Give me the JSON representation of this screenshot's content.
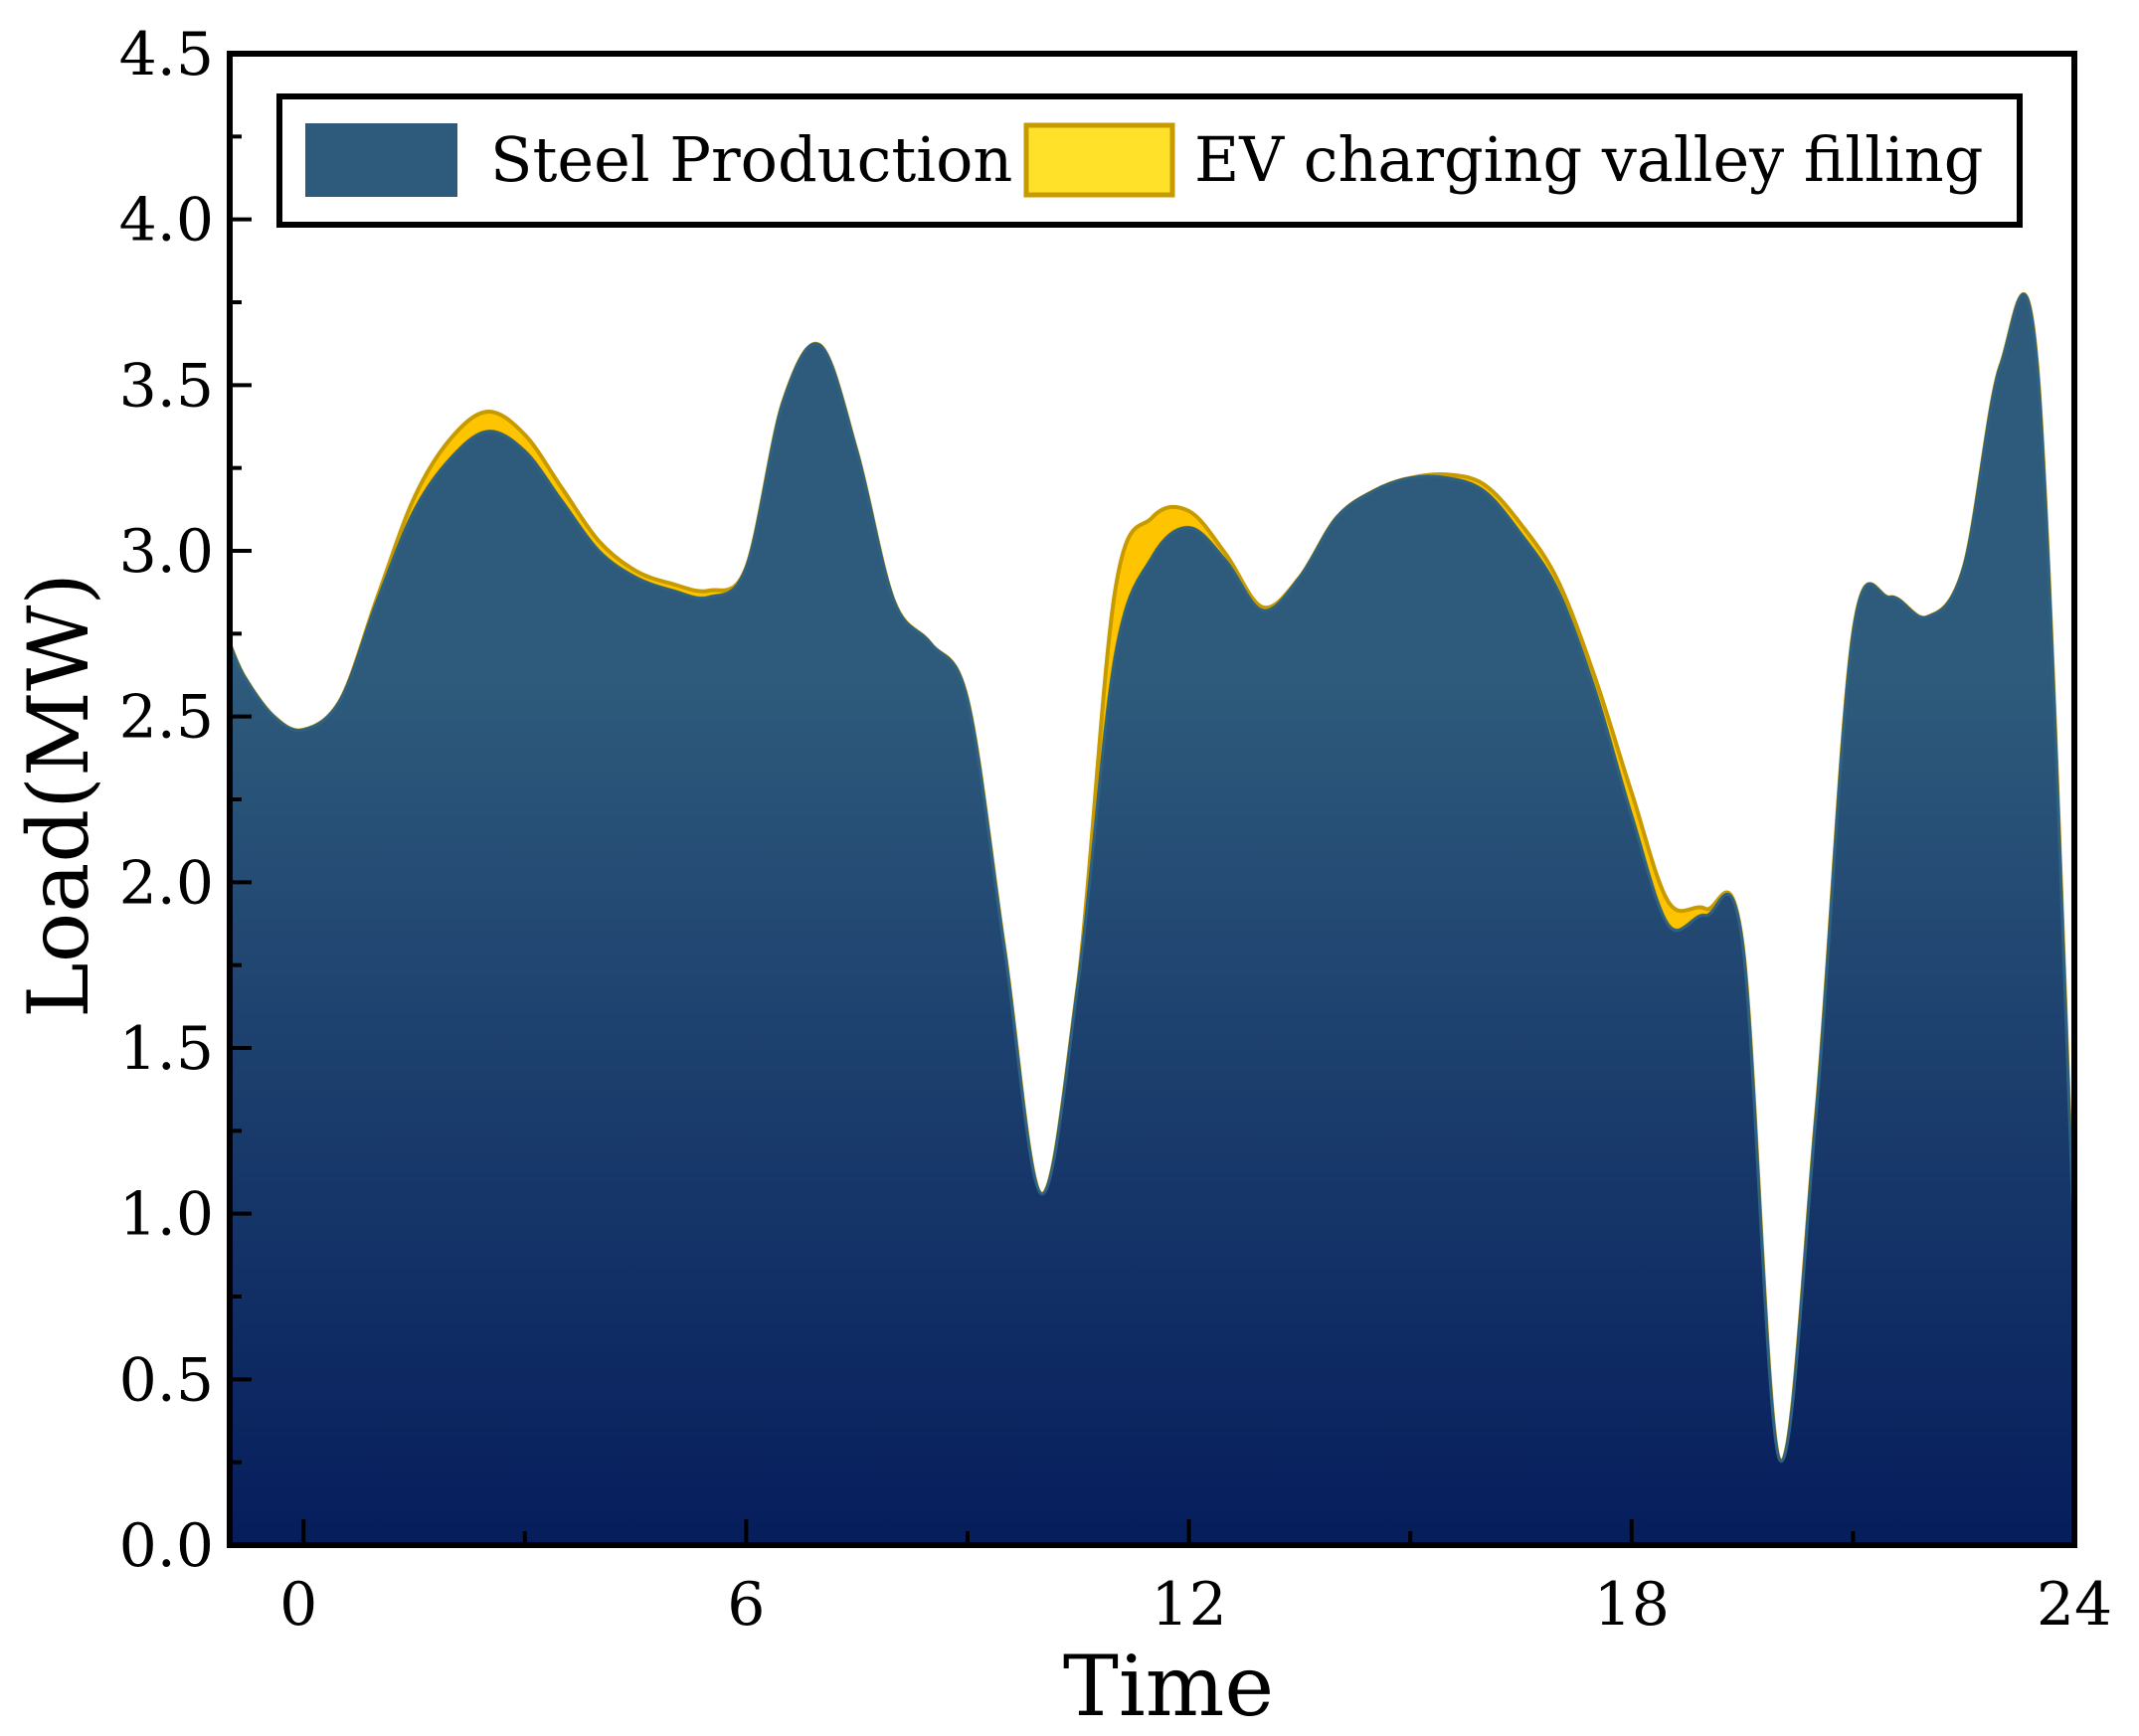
{
  "chart_data": {
    "type": "area",
    "title": "",
    "xlabel": "Time",
    "ylabel": "Load(MW)",
    "xlim": [
      -1,
      24
    ],
    "ylim": [
      0,
      4.5
    ],
    "x_ticks": [
      0,
      6,
      12,
      18,
      24
    ],
    "y_ticks": [
      0.0,
      0.5,
      1.0,
      1.5,
      2.0,
      2.5,
      3.0,
      3.5,
      4.0,
      4.5
    ],
    "y_tick_labels": [
      "0.0",
      "0.5",
      "1.0",
      "1.5",
      "2.0",
      "2.5",
      "3.0",
      "3.5",
      "4.0",
      "4.5"
    ],
    "x_tick_labels": [
      "0",
      "6",
      "12",
      "18",
      "24"
    ],
    "grid": false,
    "legend_position": "top",
    "series": [
      {
        "name": "Steel Production",
        "color_top": "#2e5b7c",
        "color_bottom": "#061d5c",
        "x": [
          -1,
          -0.8,
          -0.4,
          0,
          0.5,
          1,
          1.5,
          2,
          2.5,
          3,
          3.5,
          4,
          4.5,
          5,
          5.5,
          6,
          6.5,
          7,
          7.5,
          8,
          8.5,
          9,
          9.5,
          10,
          10.5,
          11,
          11.5,
          12,
          12.5,
          13,
          13.5,
          14,
          14.5,
          15,
          15.5,
          16,
          16.5,
          17,
          17.5,
          18,
          18.5,
          19,
          19.5,
          20,
          20.5,
          21,
          21.5,
          22,
          22.5,
          23,
          23.5,
          24
        ],
        "values": [
          2.72,
          2.62,
          2.5,
          2.46,
          2.55,
          2.85,
          3.12,
          3.28,
          3.36,
          3.3,
          3.15,
          3.0,
          2.92,
          2.88,
          2.86,
          2.95,
          3.45,
          3.62,
          3.3,
          2.85,
          2.72,
          2.55,
          1.8,
          1.06,
          1.7,
          2.68,
          2.98,
          3.07,
          2.97,
          2.82,
          2.92,
          3.1,
          3.18,
          3.22,
          3.22,
          3.18,
          3.05,
          2.88,
          2.58,
          2.2,
          1.87,
          1.9,
          1.82,
          0.26,
          1.3,
          2.75,
          2.86,
          2.8,
          2.95,
          3.56,
          3.55,
          0.9
        ]
      },
      {
        "name": "EV charging valley filling",
        "color_fill": "#ffe12a",
        "color_edge": "#c79a00",
        "x": [
          -1,
          -0.8,
          -0.4,
          0,
          0.5,
          1,
          1.5,
          2,
          2.5,
          3,
          3.5,
          4,
          4.5,
          5,
          5.5,
          6,
          6.5,
          7,
          7.5,
          8,
          8.5,
          9,
          9.5,
          10,
          10.5,
          11,
          11.5,
          12,
          12.5,
          13,
          13.5,
          14,
          14.5,
          15,
          15.5,
          16,
          16.5,
          17,
          17.5,
          18,
          18.5,
          19,
          19.5,
          20,
          20.5,
          21,
          21.5,
          22,
          22.5,
          23,
          23.5,
          24
        ],
        "values": [
          0,
          0,
          0,
          0,
          0,
          0.01,
          0.04,
          0.06,
          0.06,
          0.05,
          0.04,
          0.03,
          0.02,
          0.02,
          0.02,
          0,
          0,
          0,
          0,
          0,
          0,
          0,
          0,
          0,
          0,
          0.2,
          0.12,
          0.05,
          0.02,
          0.01,
          0,
          0,
          0,
          0,
          0.01,
          0.02,
          0.03,
          0.03,
          0.04,
          0.07,
          0.07,
          0.02,
          0,
          0,
          0,
          0,
          0,
          0,
          0,
          0,
          0,
          0
        ]
      }
    ]
  }
}
